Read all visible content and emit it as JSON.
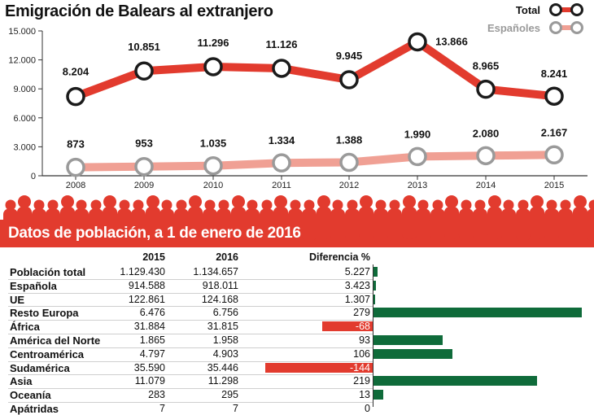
{
  "chart_data": [
    {
      "type": "line",
      "title": "Emigración de Balears al extranjero",
      "x": [
        "2008",
        "2009",
        "2010",
        "2011",
        "2012",
        "2013",
        "2014",
        "2015"
      ],
      "ylim": [
        0,
        15000
      ],
      "y_ticks": [
        "0",
        "3.000",
        "6.000",
        "9.000",
        "12.000",
        "15.000"
      ],
      "y_tick_values": [
        0,
        3000,
        6000,
        9000,
        12000,
        15000
      ],
      "legend_position": "top-right",
      "series": [
        {
          "name": "Total",
          "color": "#e23b2e",
          "marker_color": "#1b1b1b",
          "values": [
            8204,
            10851,
            11296,
            11126,
            9945,
            13866,
            8965,
            8241
          ],
          "labels": [
            "8.204",
            "10.851",
            "11.296",
            "11.126",
            "9.945",
            "13.866",
            "8.965",
            "8.241"
          ]
        },
        {
          "name": "Españoles",
          "color": "#f0a094",
          "marker_color": "#9a9a9a",
          "values": [
            873,
            953,
            1035,
            1334,
            1388,
            1990,
            2080,
            2167
          ],
          "labels": [
            "873",
            "953",
            "1.035",
            "1.334",
            "1.388",
            "1.990",
            "2.080",
            "2.167"
          ]
        }
      ]
    },
    {
      "type": "table",
      "title": "Datos de población, a 1 de enero de 2016",
      "columns": [
        "",
        "2015",
        "2016",
        "Diferencia %"
      ],
      "bar_max": 279,
      "rows": [
        {
          "label": "Población total",
          "v2015": "1.129.430",
          "v2016": "1.134.657",
          "diff_label": "5.227",
          "diff": 5.227
        },
        {
          "label": "Española",
          "v2015": "914.588",
          "v2016": "918.011",
          "diff_label": "3.423",
          "diff": 3.423
        },
        {
          "label": "UE",
          "v2015": "122.861",
          "v2016": "124.168",
          "diff_label": "1.307",
          "diff": 1.307
        },
        {
          "label": "Resto Europa",
          "v2015": "6.476",
          "v2016": "6.756",
          "diff_label": "279",
          "diff": 279
        },
        {
          "label": "África",
          "v2015": "31.884",
          "v2016": "31.815",
          "diff_label": "-68",
          "diff": -68
        },
        {
          "label": "América del Norte",
          "v2015": "1.865",
          "v2016": "1.958",
          "diff_label": "93",
          "diff": 93
        },
        {
          "label": "Centroamérica",
          "v2015": "4.797",
          "v2016": "4.903",
          "diff_label": "106",
          "diff": 106
        },
        {
          "label": "Sudamérica",
          "v2015": "35.590",
          "v2016": "35.446",
          "diff_label": "-144",
          "diff": -144
        },
        {
          "label": "Asia",
          "v2015": "11.079",
          "v2016": "11.298",
          "diff_label": "219",
          "diff": 219
        },
        {
          "label": "Oceanía",
          "v2015": "283",
          "v2016": "295",
          "diff_label": "13",
          "diff": 13
        },
        {
          "label": "Apátridas",
          "v2015": "7",
          "v2016": "7",
          "diff_label": "0",
          "diff": 0
        }
      ],
      "positive_color": "#0f6b3a",
      "negative_color": "#e23b2e"
    }
  ],
  "banner": {
    "color": "#e23b2e"
  }
}
